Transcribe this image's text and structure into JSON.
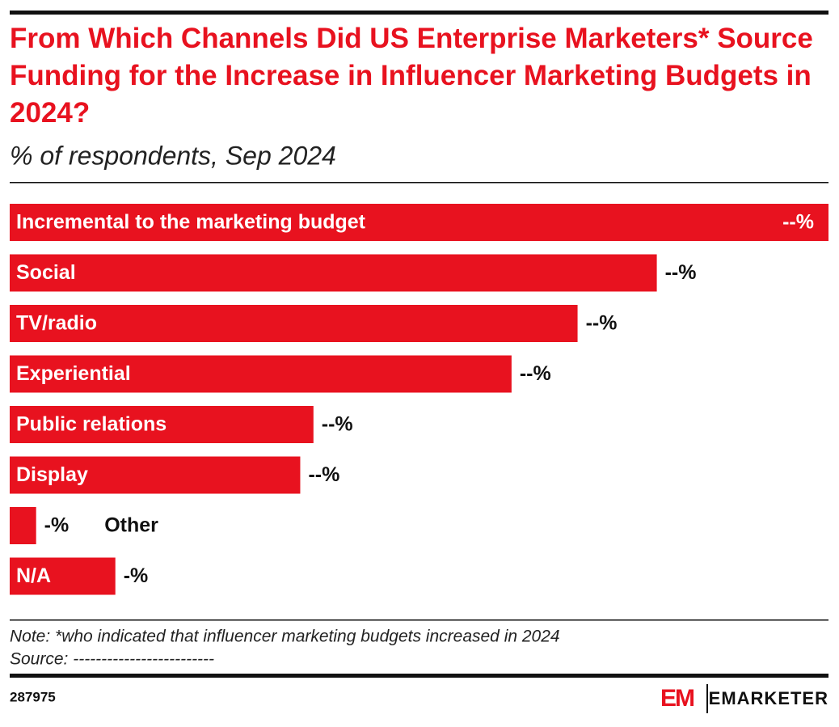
{
  "chart_data": {
    "type": "bar",
    "title": "From Which Channels Did US Enterprise Marketers* Source Funding for the Increase in Influencer Marketing Budgets in 2024?",
    "subtitle": "% of respondents, Sep 2024",
    "categories": [
      "Incremental to the marketing budget",
      "Social",
      "TV/radio",
      "Experiential",
      "Public relations",
      "Display",
      "Other",
      "N/A"
    ],
    "values": [
      62,
      49,
      43,
      38,
      23,
      22,
      2,
      8
    ],
    "value_labels": [
      "--%",
      "--%",
      "--%",
      "--%",
      "--%",
      "--%",
      "-%",
      "-%"
    ],
    "color": "#e8121f",
    "note": "Note: *who indicated that influencer marketing budgets increased in 2024",
    "source": "Source: -------------------------"
  },
  "footer": {
    "id": "287975",
    "logo": "EM",
    "brand": "EMARKETER"
  }
}
